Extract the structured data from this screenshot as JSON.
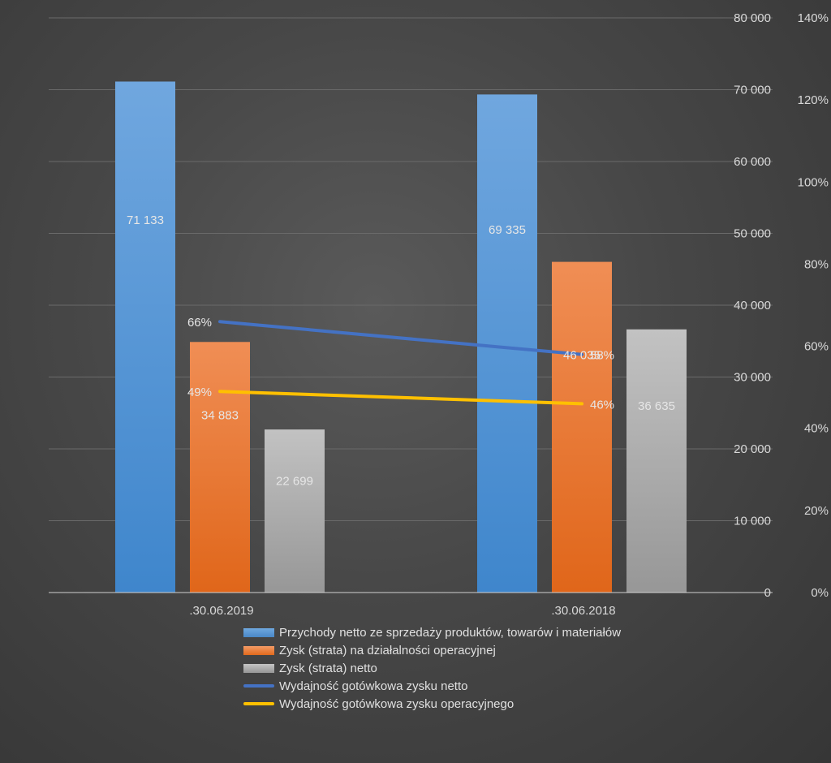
{
  "chart_data": {
    "type": "bar",
    "categories": [
      ".30.06.2019",
      ".30.06.2018"
    ],
    "series": [
      {
        "name": "Przychody netto ze sprzedaży produktów, towarów i materiałów",
        "kind": "bar",
        "axis": "left",
        "values": [
          71133,
          69335
        ],
        "labels": [
          "71 133",
          "69 335"
        ],
        "color": "#5b9bd5"
      },
      {
        "name": "Zysk (strata) na działalności operacyjnej",
        "kind": "bar",
        "axis": "left",
        "values": [
          34883,
          46035
        ],
        "labels": [
          "34 883",
          "46 035"
        ],
        "color": "#ed7d31"
      },
      {
        "name": "Zysk (strata) netto",
        "kind": "bar",
        "axis": "left",
        "values": [
          22699,
          36635
        ],
        "labels": [
          "22 699",
          "36 635"
        ],
        "color": "#a5a5a5"
      },
      {
        "name": "Wydajność gotówkowa  zysku netto",
        "kind": "line",
        "axis": "right",
        "values": [
          66,
          58
        ],
        "labels": [
          "66%",
          "58%"
        ],
        "color": "#4472c4"
      },
      {
        "name": "Wydajność gotówkowa zysku  operacyjnego",
        "kind": "line",
        "axis": "right",
        "values": [
          49,
          46
        ],
        "labels": [
          "49%",
          "46%"
        ],
        "color": "#ffc000"
      }
    ],
    "y_left": {
      "range": [
        0,
        80000
      ],
      "ticks": [
        "0",
        "10 000",
        "20 000",
        "30 000",
        "40 000",
        "50 000",
        "60 000",
        "70 000",
        "80 000"
      ]
    },
    "y_right": {
      "range": [
        0,
        140
      ],
      "ticks": [
        "0%",
        "20%",
        "40%",
        "60%",
        "80%",
        "100%",
        "120%",
        "140%"
      ]
    },
    "grid": true,
    "legend_position": "bottom",
    "title": "",
    "xlabel": "",
    "ylabel": ""
  },
  "legend": [
    "Przychody netto ze sprzedaży produktów, towarów i materiałów",
    "Zysk (strata) na działalności operacyjnej",
    "Zysk (strata) netto",
    "Wydajność gotówkowa  zysku netto",
    "Wydajność gotówkowa zysku  operacyjnego"
  ]
}
